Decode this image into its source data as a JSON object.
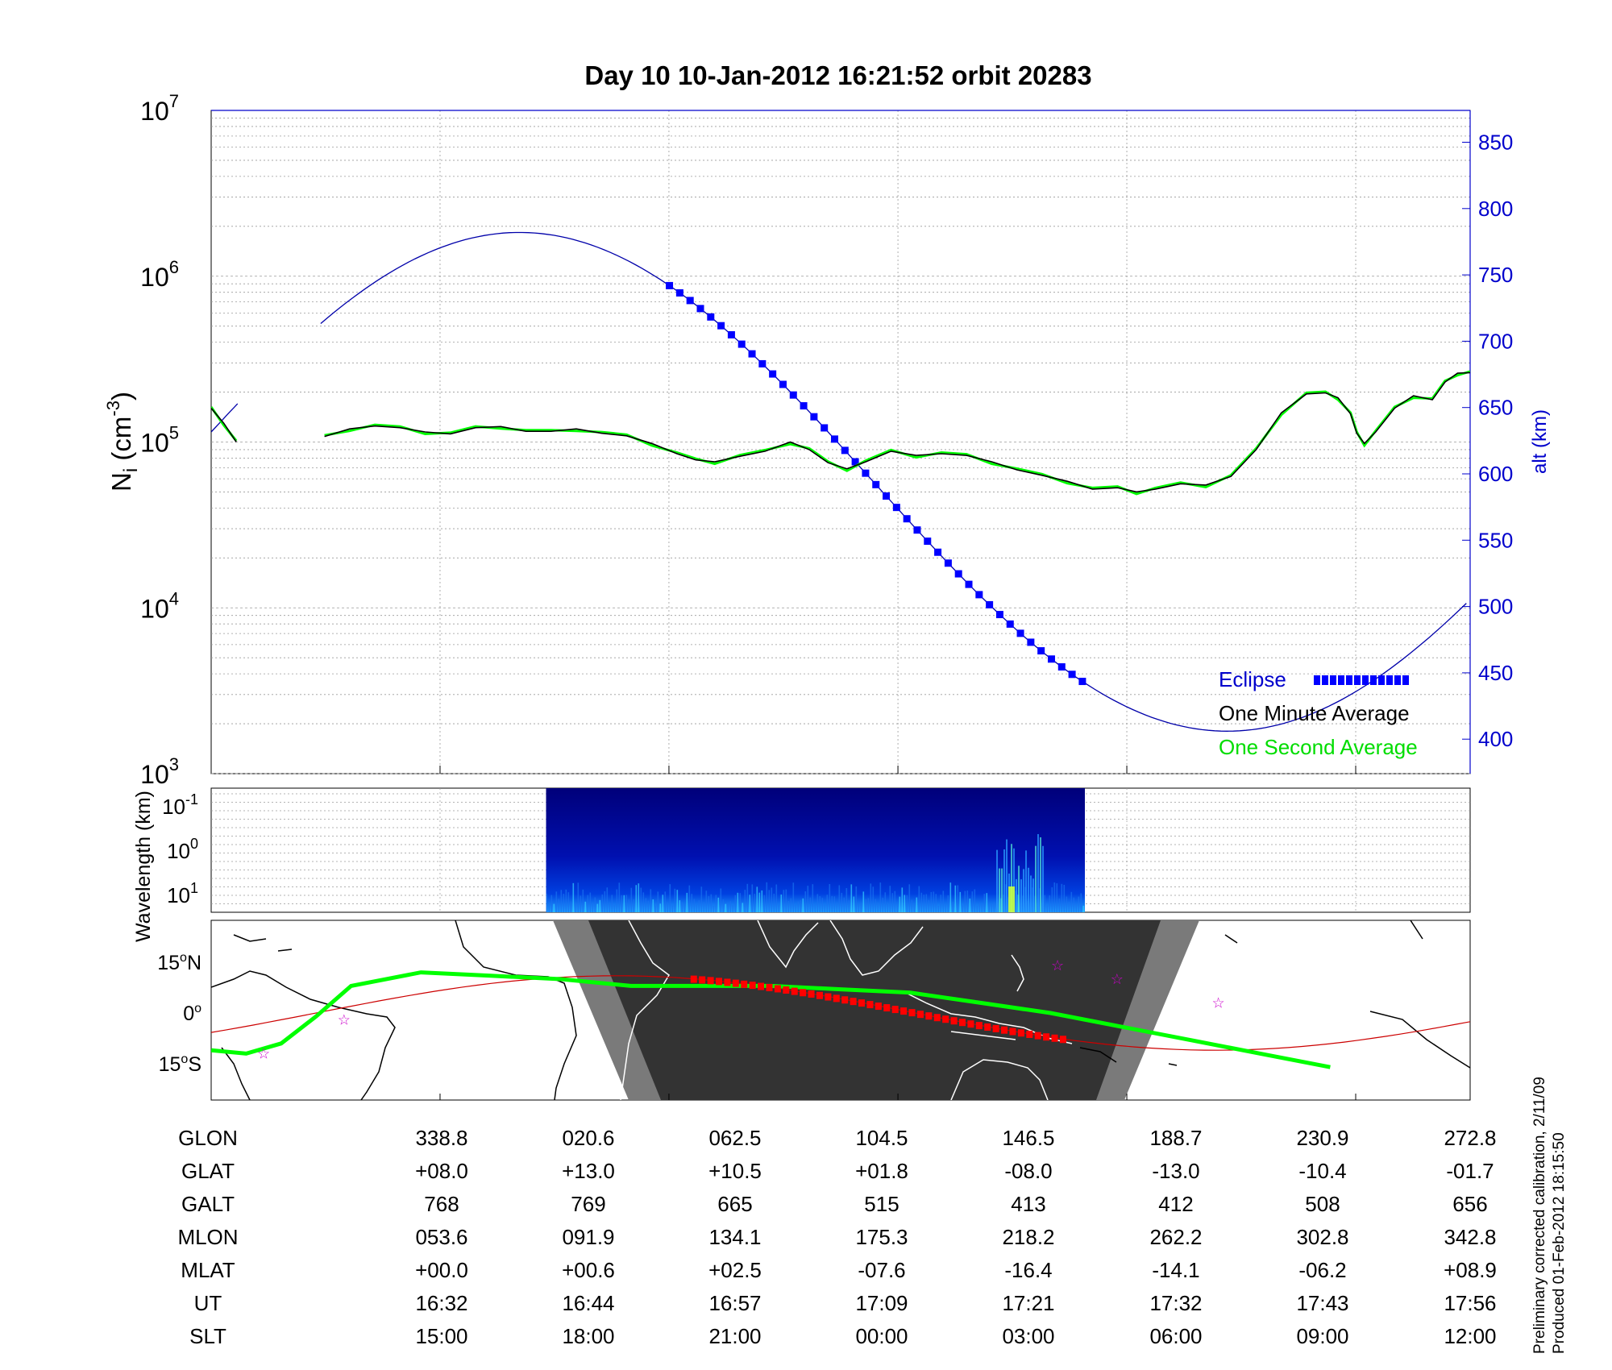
{
  "title": "Day 10  10-Jan-2012 16:21:52   orbit 20283",
  "colors": {
    "eclipse": "#0000ff",
    "minute": "#000000",
    "second": "#00ff00",
    "altitude": "#0000aa",
    "track_red": "#ff0000",
    "night": "#333333",
    "twilight": "#777777"
  },
  "chart_data": [
    {
      "type": "line",
      "id": "density",
      "y_label_main": "N",
      "y_label_sub": "i",
      "y_label_unit": "(cm",
      "y_label_exp": "-3",
      "y_label_close": ")",
      "y_scale": "log",
      "ylim": [
        1000,
        10000000
      ],
      "y_ticks": [
        {
          "base": "10",
          "exp": "3",
          "value": 1000
        },
        {
          "base": "10",
          "exp": "4",
          "value": 10000
        },
        {
          "base": "10",
          "exp": "5",
          "value": 100000
        },
        {
          "base": "10",
          "exp": "6",
          "value": 1000000
        },
        {
          "base": "10",
          "exp": "7",
          "value": 10000000
        }
      ],
      "x_range": [
        0,
        100
      ],
      "y2_label": "alt (km)",
      "y2_lim": [
        374,
        874
      ],
      "y2_ticks": [
        "400",
        "450",
        "500",
        "550",
        "600",
        "650",
        "700",
        "750",
        "800",
        "850"
      ],
      "legend": [
        {
          "label": "Eclipse",
          "color": "#0000ff"
        },
        {
          "label": "One Minute Average",
          "color": "#000000"
        },
        {
          "label": "One Second Average",
          "color": "#00ff00"
        }
      ],
      "legend_position": "bottom-right",
      "grid": true,
      "series": [
        {
          "color": "#000000",
          "segments": [
            [
              [
                0,
                160000
              ],
              [
                1,
                130000
              ],
              [
                2,
                100000
              ]
            ],
            [
              [
                9,
                108000
              ],
              [
                11,
                120000
              ],
              [
                13,
                125000
              ],
              [
                15,
                122000
              ],
              [
                17,
                115000
              ],
              [
                19,
                112000
              ],
              [
                21,
                122000
              ],
              [
                23,
                124000
              ],
              [
                25,
                116000
              ],
              [
                27,
                116000
              ],
              [
                29,
                120000
              ],
              [
                31,
                113000
              ],
              [
                33,
                109000
              ],
              [
                35,
                98000
              ],
              [
                37,
                85000
              ],
              [
                38.5,
                78000
              ],
              [
                40,
                76000
              ],
              [
                42,
                82000
              ],
              [
                44,
                88000
              ],
              [
                46,
                100000
              ],
              [
                47.5,
                90000
              ],
              [
                49,
                75000
              ],
              [
                50.5,
                69000
              ],
              [
                52,
                76000
              ],
              [
                54,
                88000
              ],
              [
                56,
                83000
              ],
              [
                58,
                85000
              ],
              [
                60,
                83000
              ],
              [
                62,
                76000
              ],
              [
                64,
                68000
              ],
              [
                66,
                63000
              ],
              [
                68,
                58000
              ],
              [
                70,
                52000
              ],
              [
                72,
                53000
              ],
              [
                73.5,
                50000
              ],
              [
                75,
                52000
              ],
              [
                77,
                56000
              ],
              [
                79,
                55000
              ],
              [
                81,
                62000
              ],
              [
                83,
                90000
              ],
              [
                85,
                150000
              ],
              [
                87,
                195000
              ],
              [
                88.5,
                198000
              ],
              [
                89.5,
                185000
              ],
              [
                90.5,
                148000
              ],
              [
                91,
                113000
              ],
              [
                91.6,
                98000
              ],
              [
                92.5,
                115000
              ],
              [
                94,
                160000
              ],
              [
                95.5,
                190000
              ],
              [
                97,
                180000
              ],
              [
                98,
                230000
              ],
              [
                99,
                260000
              ],
              [
                100,
                262000
              ]
            ]
          ]
        }
      ]
    },
    {
      "type": "heatmap",
      "id": "spectrum",
      "y_label": "Wavelength (km)",
      "y_ticks": [
        {
          "base": "10",
          "exp": "-1"
        },
        {
          "base": "10",
          "exp": "0"
        },
        {
          "base": "10",
          "exp": "1"
        }
      ],
      "x_start_frac": 0.266,
      "x_end_frac": 0.694,
      "colormap": "jet"
    },
    {
      "type": "map",
      "id": "groundtrack",
      "y_ticks": [
        {
          "label": "15",
          "unit": "N",
          "lat": 15
        },
        {
          "label": "0",
          "unit": "",
          "lat": 0
        },
        {
          "label": "15",
          "unit": "S",
          "lat": -15
        }
      ],
      "track_green": [
        [
          -180,
          -11
        ],
        [
          -170,
          -12
        ],
        [
          -160,
          -9
        ],
        [
          -150,
          -1
        ],
        [
          -140,
          8
        ],
        [
          -120,
          12
        ],
        [
          -100,
          11
        ],
        [
          -80,
          10
        ],
        [
          -60,
          8
        ],
        [
          -40,
          8
        ],
        [
          -20,
          8
        ],
        [
          0,
          7
        ],
        [
          20,
          6
        ],
        [
          40,
          3
        ],
        [
          60,
          0
        ],
        [
          80,
          -4
        ],
        [
          100,
          -8
        ],
        [
          120,
          -12
        ],
        [
          140,
          -16
        ]
      ],
      "stars": [
        [
          -165,
          -12
        ],
        [
          -142,
          -2
        ],
        [
          62,
          14
        ],
        [
          79,
          10
        ],
        [
          108,
          3
        ]
      ]
    }
  ],
  "ephemeris": {
    "row_labels": [
      "GLON",
      "GLAT",
      "GALT",
      "MLON",
      "MLAT",
      "UT",
      "SLT"
    ],
    "columns": [
      [
        "338.8",
        "+08.0",
        "768",
        "053.6",
        "+00.0",
        "16:32",
        "15:00"
      ],
      [
        "020.6",
        "+13.0",
        "769",
        "091.9",
        "+00.6",
        "16:44",
        "18:00"
      ],
      [
        "062.5",
        "+10.5",
        "665",
        "134.1",
        "+02.5",
        "16:57",
        "21:00"
      ],
      [
        "104.5",
        "+01.8",
        "515",
        "175.3",
        "-07.6",
        "17:09",
        "00:00"
      ],
      [
        "146.5",
        "-08.0",
        "413",
        "218.2",
        "-16.4",
        "17:21",
        "03:00"
      ],
      [
        "188.7",
        "-13.0",
        "412",
        "262.2",
        "-14.1",
        "17:32",
        "06:00"
      ],
      [
        "230.9",
        "-10.4",
        "508",
        "302.8",
        "-06.2",
        "17:43",
        "09:00"
      ],
      [
        "272.8",
        "-01.7",
        "656",
        "342.8",
        "+08.9",
        "17:56",
        "12:00"
      ]
    ]
  },
  "footnote": {
    "line1": "Preliminary corrected calibration, 2/11/09",
    "line2": "Produced 01-Feb-2012 18:15:50"
  }
}
